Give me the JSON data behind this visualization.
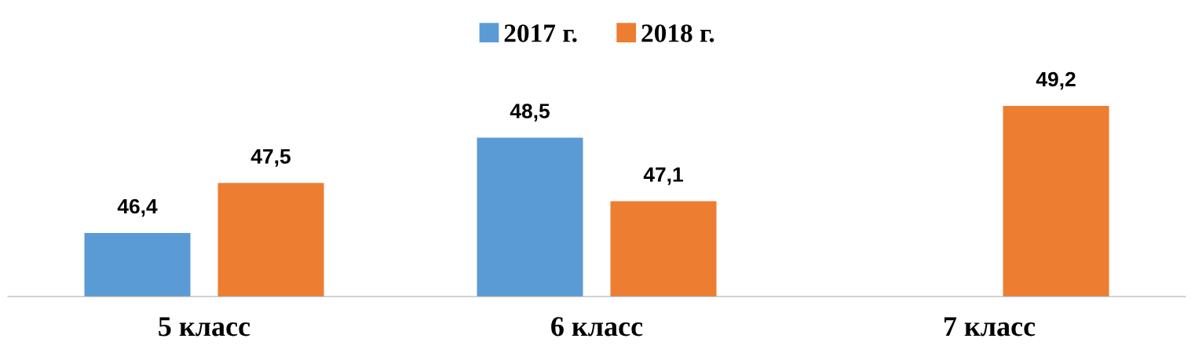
{
  "chart_data": {
    "type": "bar",
    "categories": [
      "5 класс",
      "6 класс",
      "7 класс"
    ],
    "series": [
      {
        "name": "2017 г.",
        "color": "#5b9bd5",
        "values": [
          46.4,
          48.5,
          null
        ],
        "value_labels": [
          "46,4",
          "48,5",
          null
        ]
      },
      {
        "name": "2018 г.",
        "color": "#ed7d31",
        "values": [
          47.5,
          47.1,
          49.2
        ],
        "value_labels": [
          "47,5",
          "47,1",
          "49,2"
        ]
      }
    ],
    "ylim": [
      45,
      49.2
    ],
    "tick_labels": "x",
    "grid": false,
    "legend": "top"
  }
}
